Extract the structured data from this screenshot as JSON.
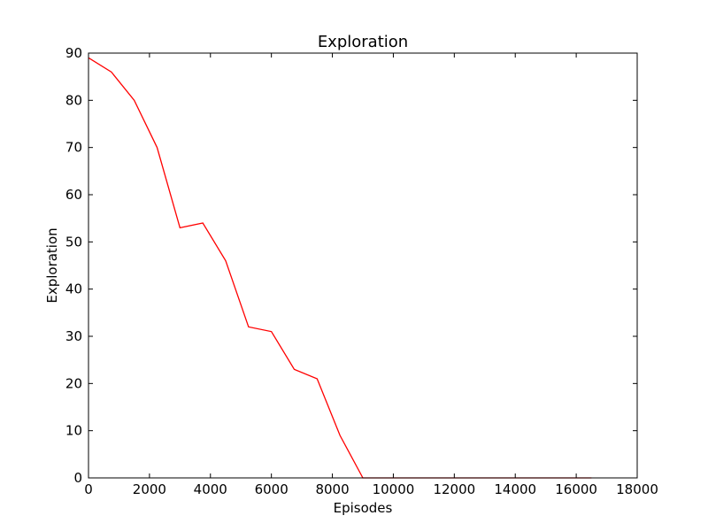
{
  "chart_data": {
    "type": "line",
    "title": "Exploration",
    "xlabel": "Episodes",
    "ylabel": "Exploration",
    "xlim": [
      0,
      18000
    ],
    "ylim": [
      0,
      90
    ],
    "xticks": [
      0,
      2000,
      4000,
      6000,
      8000,
      10000,
      12000,
      14000,
      16000,
      18000
    ],
    "yticks": [
      0,
      10,
      20,
      30,
      40,
      50,
      60,
      70,
      80,
      90
    ],
    "grid": false,
    "legend": "none",
    "series": [
      {
        "color": "#ff0000",
        "x": [
          0,
          750,
          1500,
          2250,
          3000,
          3750,
          4500,
          5250,
          6000,
          6750,
          7500,
          8250,
          9000,
          9750,
          10500,
          11250,
          12000,
          12750,
          13500,
          14250,
          15000,
          15750,
          16500
        ],
        "y": [
          89,
          86,
          80,
          70,
          53,
          54,
          46,
          32,
          31,
          23,
          21,
          9,
          0,
          0,
          0,
          0,
          0,
          0,
          0,
          0,
          0,
          0,
          0
        ]
      }
    ]
  }
}
